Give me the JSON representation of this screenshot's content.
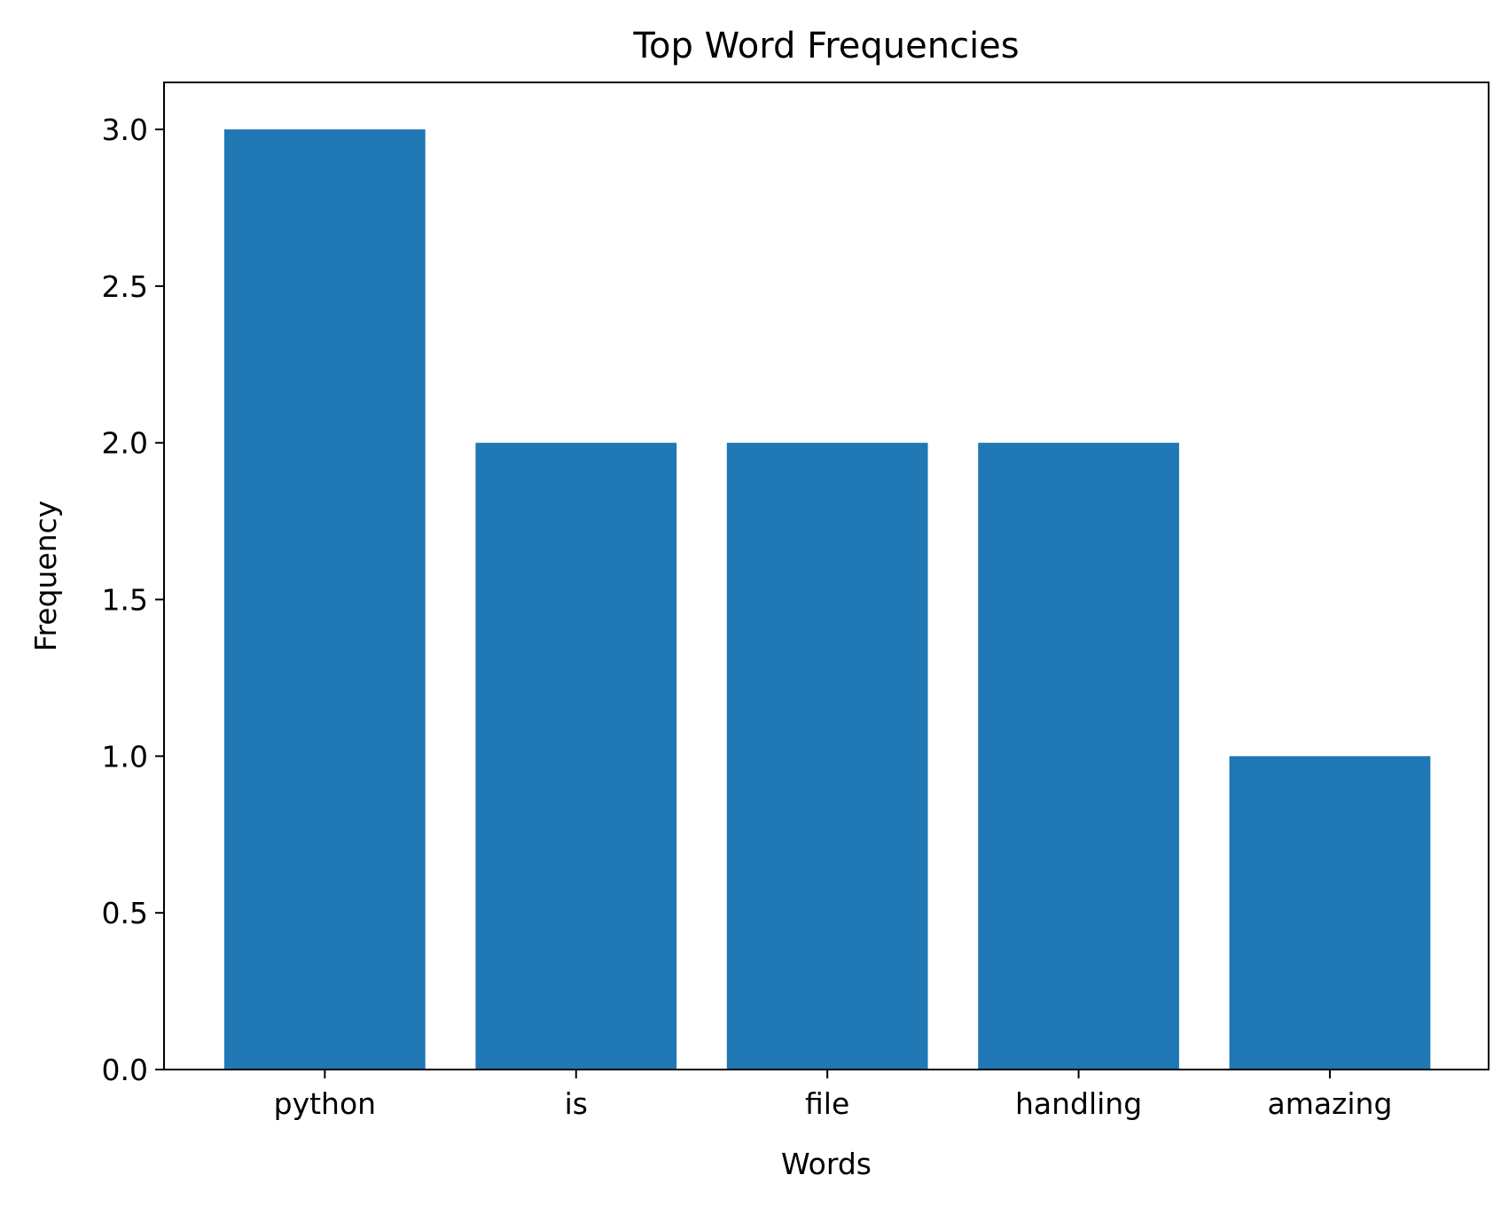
{
  "chart_data": {
    "type": "bar",
    "title": "Top Word Frequencies",
    "xlabel": "Words",
    "ylabel": "Frequency",
    "categories": [
      "python",
      "is",
      "file",
      "handling",
      "amazing"
    ],
    "values": [
      3,
      2,
      2,
      2,
      1
    ],
    "ylim": [
      0,
      3.15
    ],
    "yticks": [
      "0.0",
      "0.5",
      "1.0",
      "1.5",
      "2.0",
      "2.5",
      "3.0"
    ],
    "bar_color": "#1f77b4",
    "grid": false,
    "legend": "none"
  }
}
